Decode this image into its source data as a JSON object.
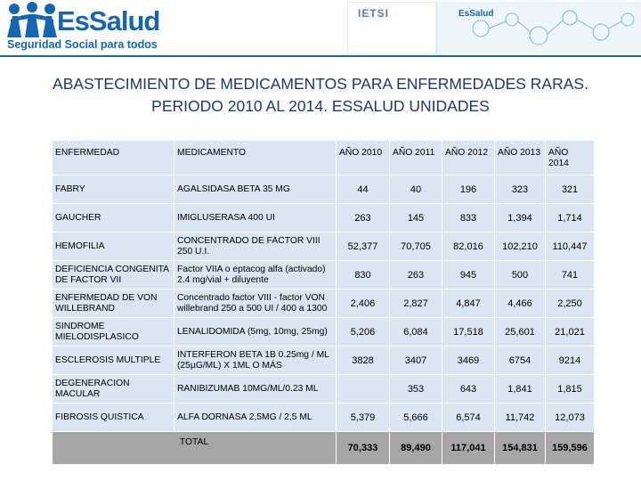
{
  "logo": {
    "name": "EsSalud",
    "tagline": "Seguridad Social para todos"
  },
  "banner": {
    "ietsi": "IETSI",
    "brand": "EsSalud"
  },
  "title": [
    "ABASTECIMIENTO DE MEDICAMENTOS PARA ENFERMEDADES RARAS.",
    "PERIODO 2010 AL 2014. ESSALUD UNIDADES"
  ],
  "table": {
    "header": [
      "ENFERMEDAD",
      "MEDICAMENTO",
      "AÑO 2010",
      "AÑO 2011",
      "AÑO 2012",
      "AÑO 2013",
      "AÑO 2014"
    ],
    "rows": [
      [
        "FABRY",
        "AGALSIDASA BETA 35 MG",
        "44",
        "40",
        "196",
        "323",
        "321"
      ],
      [
        "GAUCHER",
        "IMIGLUSERASA 400 UI",
        "263",
        "145",
        "833",
        "1,394",
        "1,714"
      ],
      [
        "HEMOFILIA",
        "CONCENTRADO DE FACTOR VIII 250 U.I.",
        "52,377",
        "70,705",
        "82,016",
        "102,210",
        "110,447"
      ],
      [
        "DEFICIENCIA CONGENITA DE   FACTOR VII",
        "Factor VIIA o eptacog alfa (activado) 2.4 mg/vial + diluyente",
        "830",
        "263",
        "945",
        "500",
        "741"
      ],
      [
        "ENFERMEDAD DE VON WILLEBRAND",
        "Concentrado factor VIII - factor VON willebrand 250 a 500 UI / 400 a 1300",
        "2,406",
        "2,827",
        "4,847",
        "4,466",
        "2,250"
      ],
      [
        "SINDROME MIELODISPLASICO",
        "LENALIDOMIDA (5mg, 10mg, 25mg)",
        "5,206",
        "6,084",
        "17,518",
        "25,601",
        "21,021"
      ],
      [
        "ESCLEROSIS MULTIPLE",
        "INTERFERON BETA 1B 0.25mg / ML (25µG/ML) X 1ML O MÁS",
        "3828",
        "3407",
        "3469",
        "6754",
        "9214"
      ],
      [
        "DEGENERACION MACULAR",
        "RANIBIZUMAB 10MG/ML/0.23 ML",
        null,
        "353",
        "643",
        "1,841",
        "1,815"
      ],
      [
        "FIBROSIS QUISTICA",
        "ALFA DORNASA 2,5MG / 2,5 ML",
        "5,379",
        "5,666",
        "6,574",
        "11,742",
        "12,073"
      ]
    ],
    "total": {
      "label": "TOTAL",
      "values": [
        "70,333",
        "89,490",
        "117,041",
        "154,831",
        "159,596"
      ]
    }
  }
}
